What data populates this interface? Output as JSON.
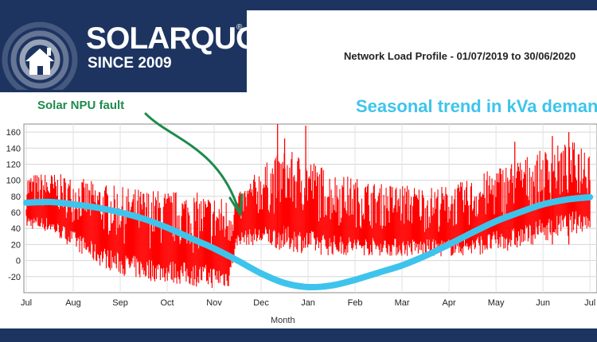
{
  "brand": {
    "name": "SOLARQUOTES",
    "registered": "®",
    "tagline": "SINCE 2009",
    "icon": "house-sun-icon"
  },
  "annotations": {
    "fault": "Solar NPU fault",
    "trend": "Seasonal trend in kVa demand"
  },
  "colors": {
    "brand_navy": "#1d3461",
    "load": "#ff0000",
    "trend": "#3ec4ec",
    "annotation_green": "#1f8a4c"
  },
  "chart_data": {
    "type": "bar",
    "title": "Network Load Profile - 01/07/2019 to 30/06/2020",
    "xlabel": "Month",
    "ylabel": "",
    "ylim": [
      -40,
      170
    ],
    "yticks": [
      -20,
      0,
      20,
      40,
      60,
      80,
      100,
      120,
      140,
      160
    ],
    "months": [
      "Jul",
      "Aug",
      "Sep",
      "Oct",
      "Nov",
      "Dec",
      "Jan",
      "Feb",
      "Mar",
      "Apr",
      "May",
      "Jun",
      "Jul"
    ],
    "grid": true,
    "series": [
      {
        "role": "load",
        "envelope_points": [
          [
            0,
            108,
            40
          ],
          [
            0.5,
            110,
            35
          ],
          [
            1,
            105,
            15
          ],
          [
            1.5,
            98,
            -5
          ],
          [
            2,
            92,
            -18
          ],
          [
            2.5,
            90,
            -25
          ],
          [
            3,
            88,
            -28
          ],
          [
            3.5,
            86,
            -32
          ],
          [
            4,
            82,
            -35
          ],
          [
            4.3,
            78,
            -35
          ],
          [
            4.5,
            82,
            20
          ],
          [
            5,
            118,
            18
          ],
          [
            5.5,
            138,
            12
          ],
          [
            6,
            130,
            8
          ],
          [
            6.5,
            110,
            6
          ],
          [
            7,
            104,
            6
          ],
          [
            7.5,
            96,
            6
          ],
          [
            8,
            96,
            5
          ],
          [
            8.5,
            92,
            5
          ],
          [
            9,
            94,
            5
          ],
          [
            9.5,
            102,
            6
          ],
          [
            10,
            118,
            10
          ],
          [
            10.5,
            128,
            14
          ],
          [
            11,
            138,
            24
          ],
          [
            11.5,
            148,
            30
          ],
          [
            12,
            150,
            38
          ]
        ],
        "spikes": [
          [
            5.35,
            170
          ],
          [
            5.5,
            152
          ],
          [
            5.95,
            168
          ],
          [
            10.4,
            148
          ],
          [
            11.2,
            155
          ],
          [
            11.55,
            160
          ]
        ]
      },
      {
        "role": "trend",
        "points": [
          [
            0,
            72
          ],
          [
            0.5,
            73
          ],
          [
            1,
            70
          ],
          [
            1.5,
            66
          ],
          [
            2,
            60
          ],
          [
            2.5,
            52
          ],
          [
            3,
            41
          ],
          [
            3.5,
            28
          ],
          [
            4,
            15
          ],
          [
            4.5,
            0
          ],
          [
            5,
            -16
          ],
          [
            5.5,
            -28
          ],
          [
            6,
            -33
          ],
          [
            6.5,
            -31
          ],
          [
            7,
            -24
          ],
          [
            7.5,
            -15
          ],
          [
            8,
            -6
          ],
          [
            8.5,
            6
          ],
          [
            9,
            20
          ],
          [
            9.5,
            35
          ],
          [
            10,
            49
          ],
          [
            10.5,
            60
          ],
          [
            11,
            70
          ],
          [
            11.5,
            76
          ],
          [
            12,
            79
          ]
        ]
      }
    ]
  }
}
